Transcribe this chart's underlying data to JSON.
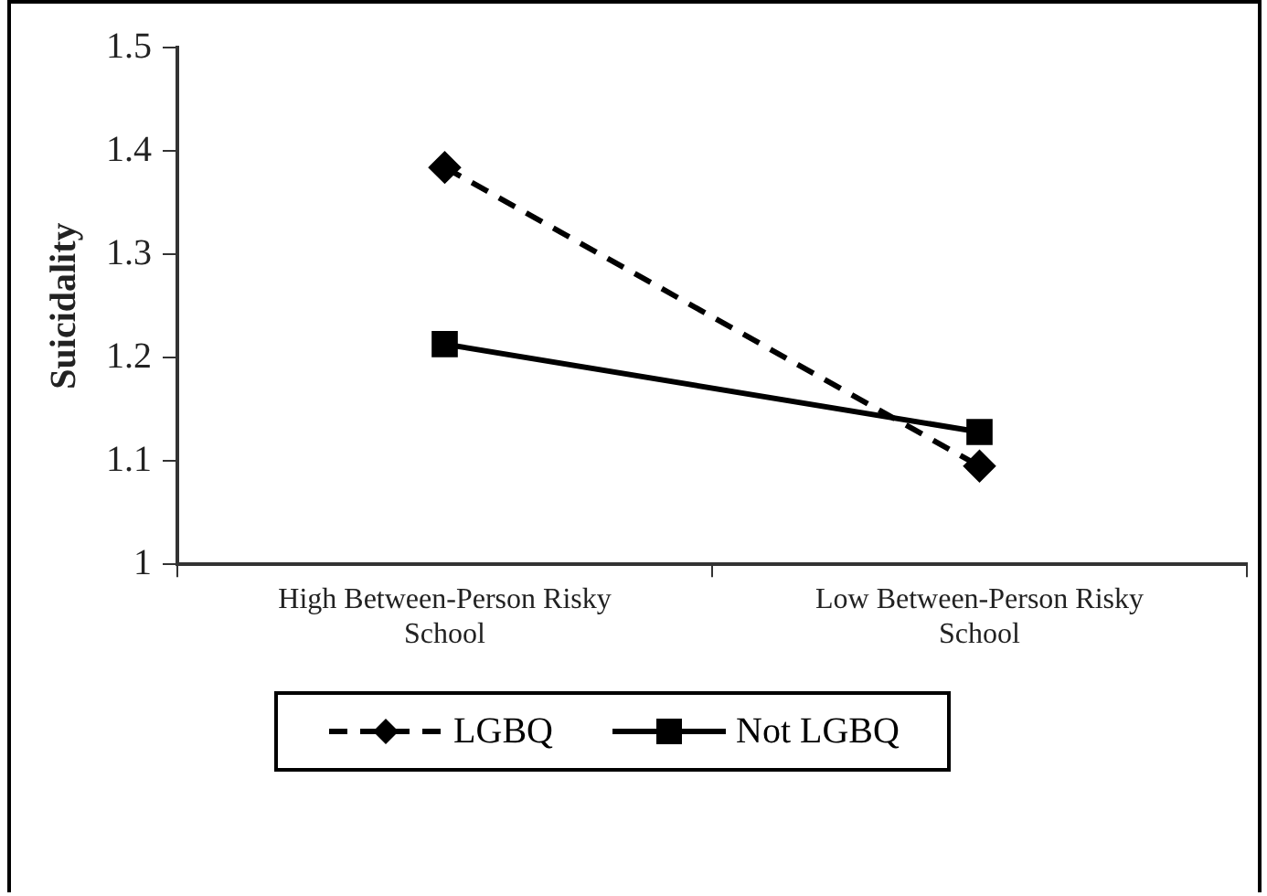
{
  "chart_data": {
    "type": "line",
    "ylabel": "Suicidality",
    "categories": [
      "High Between-Person Risky School",
      "Low Between-Person Risky School"
    ],
    "series": [
      {
        "name": "LGBQ",
        "color": "#000000",
        "values": [
          1.384,
          1.095
        ],
        "marker": "diamond",
        "line_style": "dashed"
      },
      {
        "name": "Not LGBQ",
        "color": "#000000",
        "values": [
          1.213,
          1.128
        ],
        "marker": "square",
        "line_style": "solid"
      }
    ],
    "ylim": [
      1,
      1.5
    ],
    "yticks": [
      1,
      {
        "value": 1.1,
        "label": "1.1"
      },
      {
        "value": 1.2,
        "label": "1.2"
      },
      {
        "value": 1.3,
        "label": "1.3"
      },
      {
        "value": 1.4,
        "label": "1.4"
      },
      {
        "value": 1.5,
        "label": "1.5"
      }
    ],
    "grid": false,
    "legend": "bottom"
  }
}
